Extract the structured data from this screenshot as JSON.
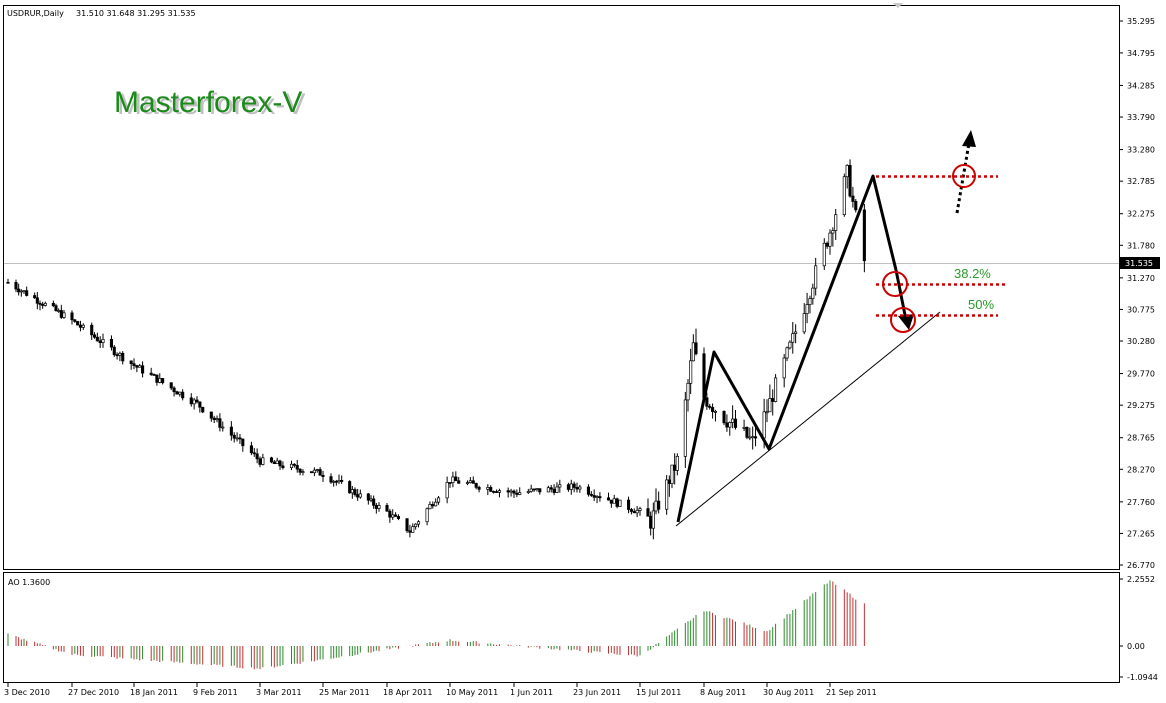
{
  "header": {
    "symbol": "USDRUR,Daily",
    "ohlc": "31.510 31.648 31.295 31.535"
  },
  "watermark": "Masterforex-V",
  "indicator": {
    "label": "AO 1.3600",
    "ticks": [
      "2.2552",
      "0.00",
      "-1.0944"
    ]
  },
  "price_axis": {
    "ticks": [
      "35.295",
      "34.795",
      "34.285",
      "33.790",
      "33.280",
      "32.785",
      "32.275",
      "31.780",
      "31.270",
      "30.775",
      "30.280",
      "29.770",
      "29.275",
      "28.765",
      "28.270",
      "27.760",
      "27.265",
      "26.770"
    ],
    "current_price": "31.535"
  },
  "time_axis": {
    "ticks": [
      "3 Dec 2010",
      "27 Dec 2010",
      "18 Jan 2011",
      "9 Feb 2011",
      "3 Mar 2011",
      "25 Mar 2011",
      "18 Apr 2011",
      "10 May 2011",
      "1 Jun 2011",
      "23 Jun 2011",
      "15 Jul 2011",
      "8 Aug 2011",
      "30 Aug 2011",
      "21 Sep 2011"
    ]
  },
  "annotations": {
    "fib_382": "38.2%",
    "fib_50": "50%"
  },
  "colors": {
    "candle": "#000000",
    "ao_up": "#2a8a2a",
    "ao_down": "#c03030",
    "level": "#cc0000",
    "fib_text": "#2a9a2a",
    "watermark": "#1a8a1a"
  },
  "chart_data": {
    "type": "candlestick",
    "title": "USDRUR,Daily",
    "ylim": [
      26.77,
      35.295
    ],
    "key_points": [
      {
        "date": "3 Dec 2010",
        "close": 31.2
      },
      {
        "date": "27 Dec 2010",
        "close": 30.6
      },
      {
        "date": "18 Jan 2011",
        "close": 29.9
      },
      {
        "date": "9 Feb 2011",
        "close": 29.3
      },
      {
        "date": "3 Mar 2011",
        "close": 28.4
      },
      {
        "date": "25 Mar 2011",
        "close": 28.2
      },
      {
        "date": "18 Apr 2011",
        "close": 27.6
      },
      {
        "date": "26 Apr 2011",
        "close": 27.3
      },
      {
        "date": "10 May 2011",
        "close": 28.1
      },
      {
        "date": "1 Jun 2011",
        "close": 27.9
      },
      {
        "date": "23 Jun 2011",
        "close": 28.0
      },
      {
        "date": "15 Jul 2011",
        "close": 27.6
      },
      {
        "date": "19 Jul 2011",
        "close": 27.45
      },
      {
        "date": "29 Jul 2011",
        "close": 28.4
      },
      {
        "date": "4 Aug 2011",
        "close": 30.2
      },
      {
        "date": "8 Aug 2011",
        "close": 29.4
      },
      {
        "date": "17 Aug 2011",
        "close": 29.0
      },
      {
        "date": "25 Aug 2011",
        "close": 28.7
      },
      {
        "date": "30 Aug 2011",
        "close": 29.2
      },
      {
        "date": "8 Sep 2011",
        "close": 30.3
      },
      {
        "date": "21 Sep 2011",
        "close": 32.0
      },
      {
        "date": "27 Sep 2011",
        "close": 32.9
      },
      {
        "date": "3 Oct 2011",
        "close": 31.535
      }
    ],
    "ao_series": {
      "name": "AO",
      "axis_ticks": [
        2.2552,
        0.0,
        -1.0944
      ],
      "key_points": [
        {
          "date": "3 Dec 2010",
          "value": 0.4
        },
        {
          "date": "27 Dec 2010",
          "value": -0.3
        },
        {
          "date": "3 Mar 2011",
          "value": -0.8
        },
        {
          "date": "10 May 2011",
          "value": 0.2
        },
        {
          "date": "15 Jul 2011",
          "value": -0.35
        },
        {
          "date": "8 Aug 2011",
          "value": 1.2
        },
        {
          "date": "30 Aug 2011",
          "value": 0.5
        },
        {
          "date": "21 Sep 2011",
          "value": 2.2
        },
        {
          "date": "3 Oct 2011",
          "value": 1.4
        }
      ]
    }
  }
}
